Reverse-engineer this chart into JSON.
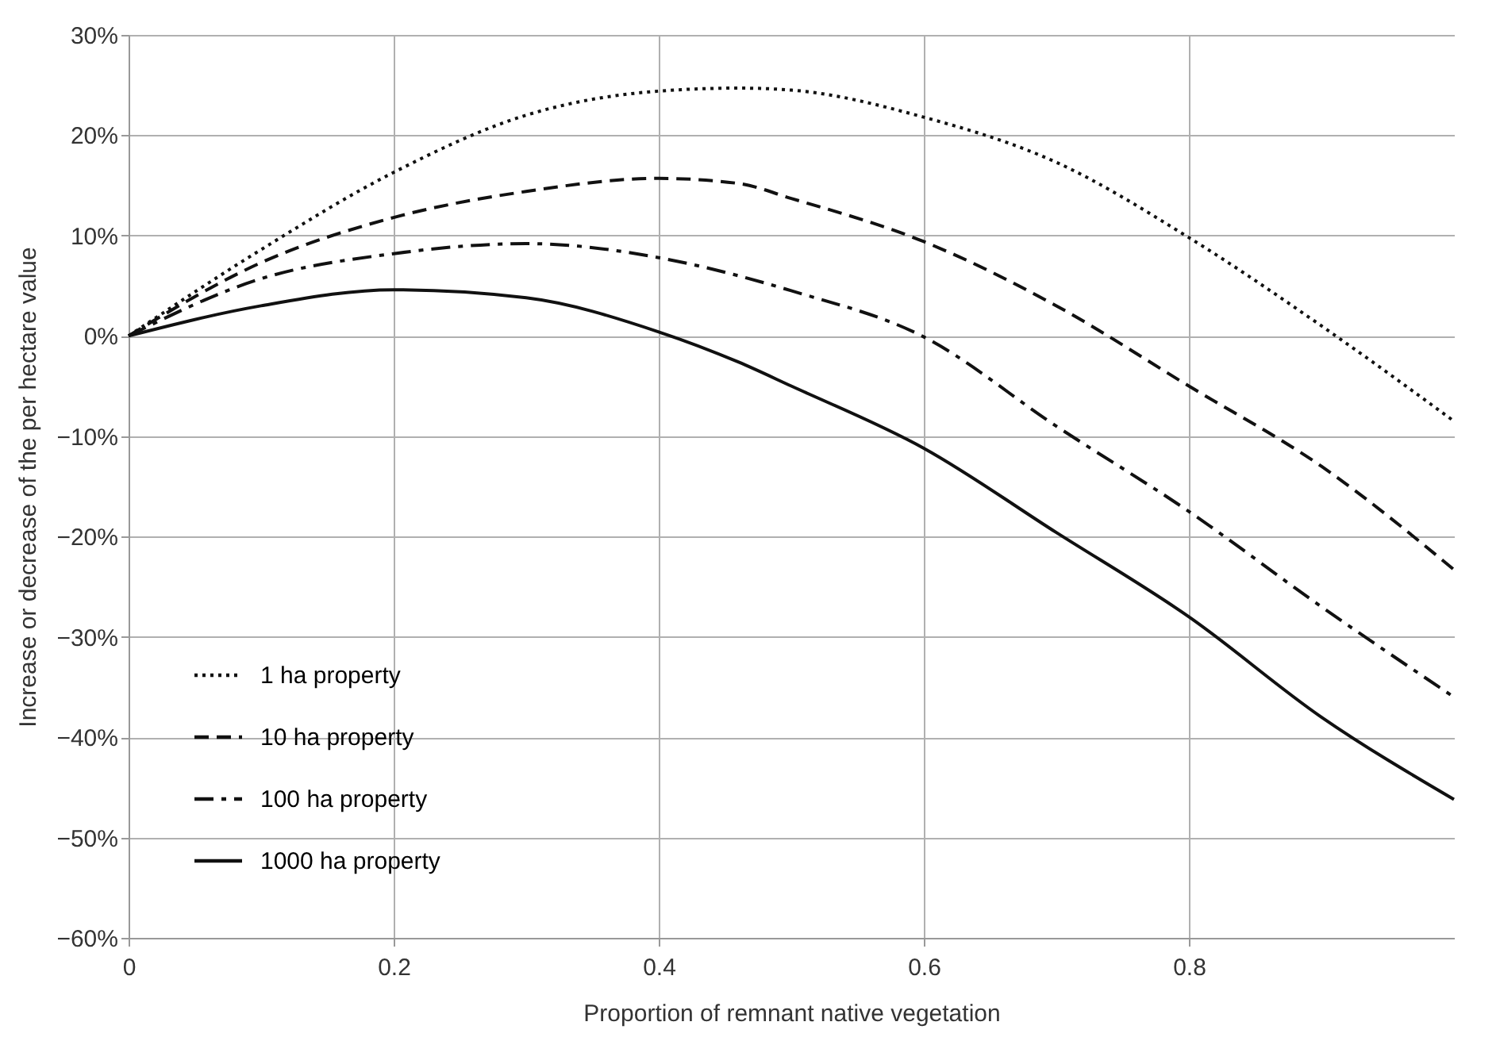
{
  "chart_data": {
    "type": "line",
    "xlabel": "Proportion of remnant native vegetation",
    "ylabel": "Increase or decrease of the per hectare value",
    "x": [
      0,
      0.1,
      0.2,
      0.3,
      0.4,
      0.46,
      0.5,
      0.6,
      0.7,
      0.8,
      0.9,
      1
    ],
    "series": [
      {
        "name": "1 ha property",
        "color": "#111111",
        "line_style": "dotted",
        "values": [
          0,
          8.6,
          16.3,
          22,
          24.4,
          24.7,
          24.5,
          21.8,
          17.3,
          9.8,
          1,
          -8.5
        ]
      },
      {
        "name": "10 ha property",
        "color": "#111111",
        "line_style": "dashed",
        "values": [
          0,
          7.3,
          11.8,
          14.4,
          15.7,
          15.2,
          13.7,
          9.4,
          3,
          -5,
          -13,
          -23.3
        ]
      },
      {
        "name": "100 ha property",
        "color": "#111111",
        "line_style": "dashdot",
        "values": [
          0,
          5.7,
          8.2,
          9.2,
          7.8,
          6,
          4.5,
          -0.1,
          -9,
          -17.5,
          -27,
          -36
        ]
      },
      {
        "name": "1000 ha property",
        "color": "#111111",
        "line_style": "solid",
        "values": [
          0,
          3,
          4.6,
          3.8,
          0.4,
          -2.6,
          -5,
          -11.2,
          -19.6,
          -28,
          -38,
          -46.2
        ]
      }
    ],
    "xlim": [
      0,
      1
    ],
    "xticks": [
      0,
      0.2,
      0.4,
      0.6,
      0.8
    ],
    "ylim": [
      -60,
      30
    ],
    "yticks": [
      {
        "value": -60,
        "label": "−60%"
      },
      {
        "value": -50,
        "label": "−50%"
      },
      {
        "value": -40,
        "label": "−40%"
      },
      {
        "value": -30,
        "label": "−30%"
      },
      {
        "value": -20,
        "label": "−20%"
      },
      {
        "value": -10,
        "label": "−10%"
      },
      {
        "value": 0,
        "label": "0%"
      },
      {
        "value": 10,
        "label": "10%"
      },
      {
        "value": 20,
        "label": "20%"
      },
      {
        "value": 30,
        "label": "30%"
      }
    ],
    "grid": true,
    "legend": "bottom left",
    "marker": "none"
  }
}
